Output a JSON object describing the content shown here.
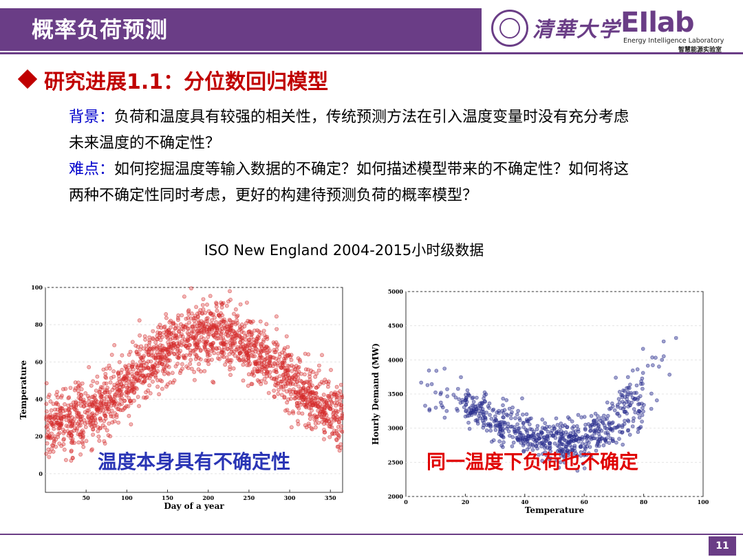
{
  "header": {
    "title": "概率负荷预测",
    "university": "清華大学",
    "lab_logo": "EIlab",
    "lab_name_en": "Energy Intelligence Laboratory",
    "lab_name_cn": "智慧能源实验室",
    "brand_color": "#6a3d86"
  },
  "section": {
    "heading": "研究进展1.1：分位数回归模型"
  },
  "body": {
    "background_label": "背景：",
    "background_text": "负荷和温度具有较强的相关性，传统预测方法在引入温度变量时没有充分考虑未来温度的不确定性？",
    "difficulty_label": "难点：",
    "difficulty_text": "如何挖掘温度等输入数据的不确定？如何描述模型带来的不确定性？如何将这两种不确定性同时考虑，更好的构建待预测负荷的概率模型？"
  },
  "caption": "ISO New England 2004-2015小时级数据",
  "overlays": {
    "left": "温度本身具有不确定性",
    "right": "同一温度下负荷也不确定"
  },
  "chart_data": [
    {
      "type": "scatter",
      "title": "",
      "xlabel": "Day of a year",
      "ylabel": "Temperature",
      "xlim": [
        0,
        365
      ],
      "ylim": [
        -10,
        100
      ],
      "xticks": [
        "50",
        "100",
        "150",
        "200",
        "250",
        "300",
        "350"
      ],
      "yticks": [
        "0",
        "20",
        "40",
        "60",
        "80",
        "100"
      ],
      "color": "#d42a2a",
      "trend": {
        "x": [
          1,
          30,
          60,
          90,
          120,
          150,
          180,
          200,
          230,
          260,
          290,
          320,
          350,
          365
        ],
        "y": [
          30,
          28,
          34,
          44,
          56,
          67,
          75,
          76,
          73,
          64,
          53,
          42,
          33,
          30
        ]
      }
    },
    {
      "type": "scatter",
      "title": "",
      "xlabel": "Temperature",
      "ylabel": "Hourly Demand (MW)",
      "xlim": [
        0,
        100
      ],
      "ylim": [
        2000,
        5000
      ],
      "xticks": [
        "0",
        "20",
        "40",
        "60",
        "80",
        "100"
      ],
      "yticks": [
        "2000",
        "2500",
        "3000",
        "3500",
        "4000",
        "4500",
        "5000"
      ],
      "color": "#2b2f8f",
      "trend": {
        "x": [
          5,
          15,
          25,
          35,
          45,
          55,
          62,
          70,
          78,
          85,
          90
        ],
        "y": [
          3550,
          3450,
          3250,
          3000,
          2850,
          2800,
          2870,
          3050,
          3400,
          3950,
          4400
        ]
      }
    }
  ],
  "page": {
    "number": "11"
  }
}
